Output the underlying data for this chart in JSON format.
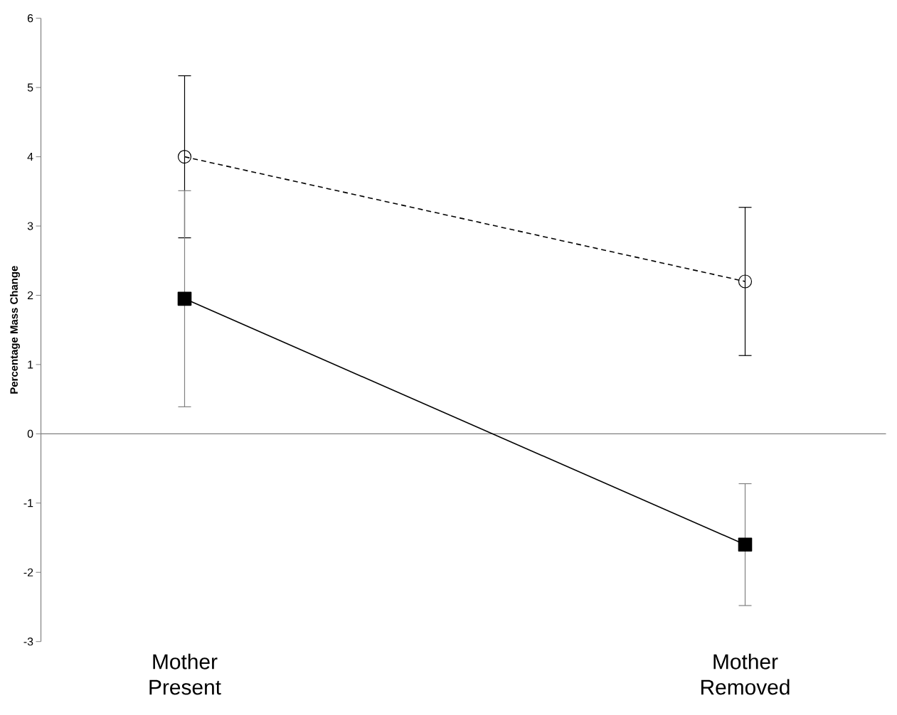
{
  "chart_data": {
    "type": "line",
    "ylabel": "Percentage Mass Change",
    "categories": [
      "Mother Present",
      "Mother Removed"
    ],
    "series": [
      {
        "color": "#000000",
        "values": [
          4.0,
          2.2
        ],
        "errors": [
          1.17,
          1.07
        ],
        "marker": "circle",
        "line_style": "dashed"
      },
      {
        "color": "#000000",
        "values": [
          1.95,
          -1.6
        ],
        "errors": [
          1.56,
          0.88
        ],
        "marker": "square",
        "line_style": "solid"
      }
    ],
    "ylim": [
      -3,
      6
    ],
    "yticks": [
      -3,
      -2,
      -1,
      0,
      1,
      2,
      3,
      4,
      5,
      6
    ]
  }
}
